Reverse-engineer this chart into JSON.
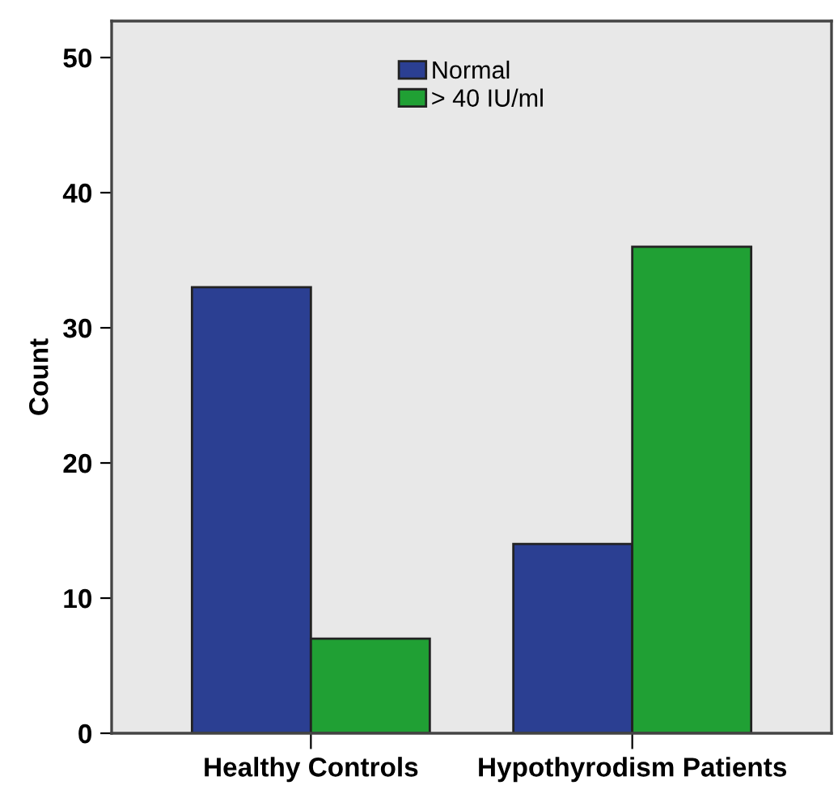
{
  "chart_data": {
    "type": "bar",
    "ylabel": "Count",
    "categories": [
      "Healthy Controls",
      "Hypothyrodism Patients"
    ],
    "series": [
      {
        "name": "Normal",
        "color": "#2b3f92",
        "values": [
          33,
          14
        ]
      },
      {
        "name": "> 40 IU/ml",
        "color": "#20a034",
        "values": [
          7,
          36
        ]
      }
    ],
    "ylim": [
      0,
      52.7
    ],
    "yticks": [
      0,
      10,
      20,
      30,
      40,
      50
    ],
    "grid": false,
    "legend": "top"
  }
}
